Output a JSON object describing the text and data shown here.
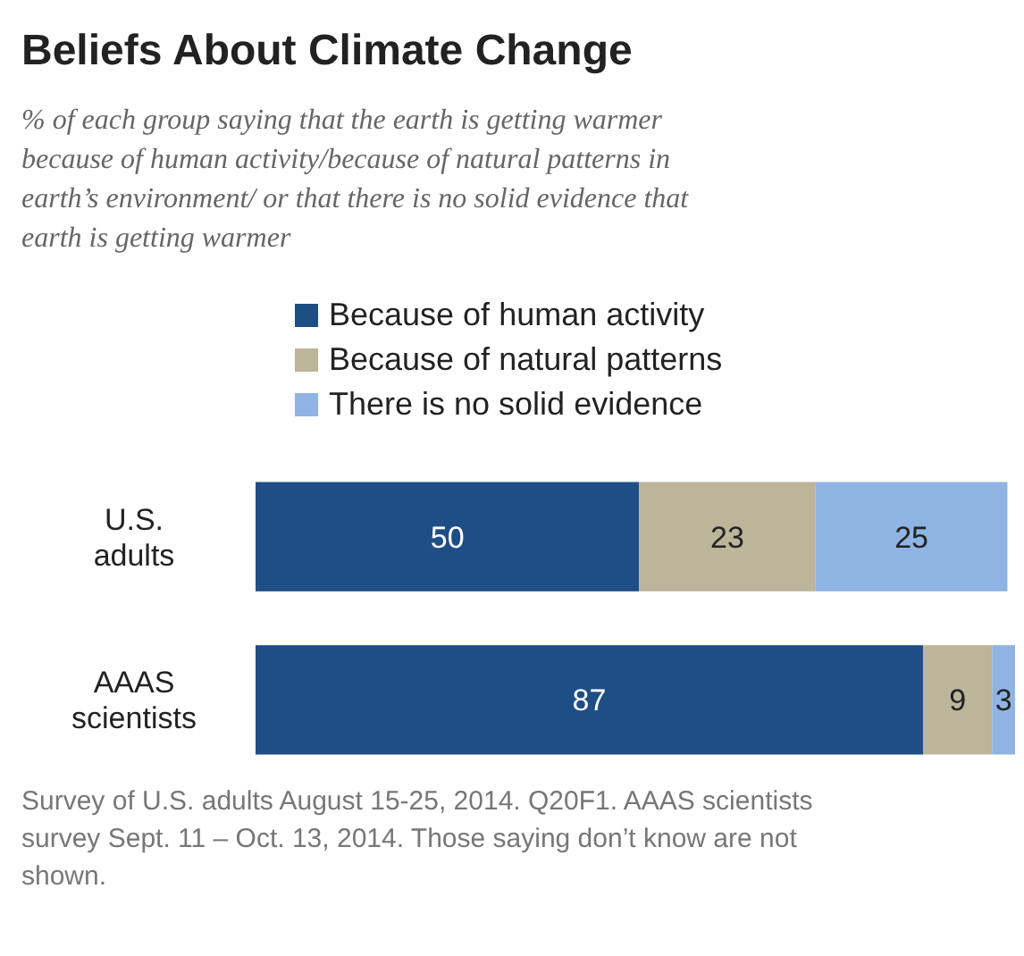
{
  "chart_data": {
    "type": "bar",
    "orientation": "horizontal",
    "stacked": true,
    "title": "Beliefs About Climate Change",
    "subtitle": "% of each group saying that the earth is getting warmer because of human activity/because of natural patterns in earth’s environment/ or that there is no solid evidence that earth is getting warmer",
    "categories": [
      "U.S. adults",
      "AAAS scientists"
    ],
    "series": [
      {
        "name": "Because of human activity",
        "color": "#1f4e85",
        "values": [
          50,
          87
        ]
      },
      {
        "name": "Because of natural patterns",
        "color": "#bdb59a",
        "values": [
          23,
          9
        ]
      },
      {
        "name": "There is no solid evidence",
        "color": "#8fb4e3",
        "values": [
          25,
          3
        ]
      }
    ],
    "data_labels": true,
    "legend": "top",
    "tick_labels": "y",
    "annotations": [
      "Survey of U.S. adults August 15-25, 2014. Q20F1. AAAS scientists survey Sept. 11 – Oct. 13, 2014. Those saying don’t know are not shown."
    ]
  }
}
